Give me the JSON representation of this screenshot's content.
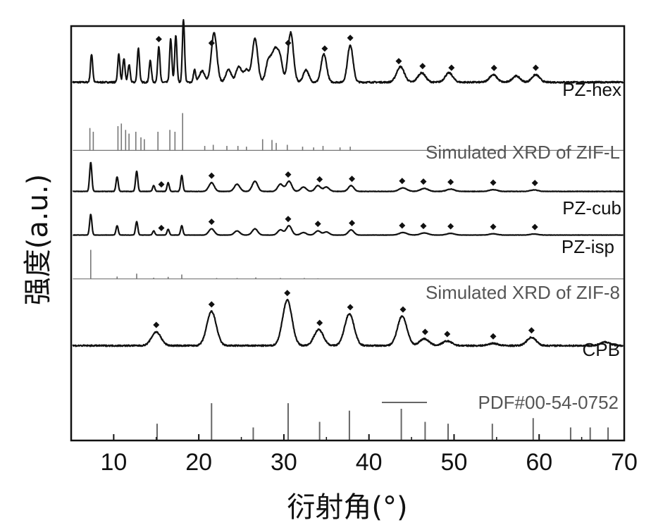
{
  "chart_data": {
    "type": "line",
    "subtype": "stacked XRD patterns",
    "xlabel": "衍射角(°)",
    "ylabel": "强度(a.u.)",
    "xlim": [
      5,
      70
    ],
    "xticks": [
      10,
      20,
      30,
      40,
      50,
      60,
      70
    ],
    "y_ticks_shown": false,
    "grid": false,
    "marker_symbol": "◆",
    "series": [
      {
        "name": "PZ-hex",
        "kind": "pattern",
        "offset": 0.86,
        "amplitude": 0.15,
        "baseline": 0.03,
        "noise": 0.012,
        "color": "#111111",
        "peaks": [
          [
            7.4,
            0.45
          ],
          [
            10.6,
            0.45
          ],
          [
            11.2,
            0.38
          ],
          [
            11.8,
            0.28
          ],
          [
            12.9,
            0.55
          ],
          [
            14.3,
            0.35
          ],
          [
            15.3,
            0.58
          ],
          [
            16.7,
            0.7
          ],
          [
            17.3,
            0.75
          ],
          [
            18.2,
            1.0
          ],
          [
            19.5,
            0.2
          ],
          [
            20.4,
            0.18
          ],
          [
            21.8,
            0.8
          ],
          [
            23.5,
            0.2
          ],
          [
            24.7,
            0.25
          ],
          [
            25.6,
            0.2
          ],
          [
            26.6,
            0.7
          ],
          [
            28.2,
            0.35
          ],
          [
            28.9,
            0.45
          ],
          [
            29.5,
            0.4
          ],
          [
            30.8,
            0.8
          ],
          [
            32.6,
            0.2
          ],
          [
            34.7,
            0.45
          ],
          [
            37.8,
            0.6
          ],
          [
            43.7,
            0.25
          ],
          [
            46.2,
            0.15
          ],
          [
            49.4,
            0.15
          ],
          [
            54.6,
            0.12
          ],
          [
            57.3,
            0.1
          ],
          [
            59.6,
            0.12
          ]
        ],
        "markers": [
          15.3,
          21.5,
          30.5,
          34.8,
          37.8,
          43.5,
          46.3,
          49.7,
          54.7,
          59.6
        ]
      },
      {
        "name": "Simulated XRD of ZIF-L",
        "kind": "sticks",
        "offset": 0.7,
        "amplitude": 0.09,
        "baseline": 0,
        "noise": 0,
        "color": "#777777",
        "peaks": [
          [
            7.2,
            0.6
          ],
          [
            7.6,
            0.5
          ],
          [
            10.5,
            0.65
          ],
          [
            10.9,
            0.72
          ],
          [
            11.4,
            0.55
          ],
          [
            11.8,
            0.45
          ],
          [
            12.6,
            0.5
          ],
          [
            13.2,
            0.35
          ],
          [
            13.6,
            0.3
          ],
          [
            15.2,
            0.5
          ],
          [
            16.6,
            0.55
          ],
          [
            17.2,
            0.5
          ],
          [
            18.1,
            1.0
          ],
          [
            20.7,
            0.12
          ],
          [
            21.7,
            0.15
          ],
          [
            23.3,
            0.12
          ],
          [
            24.6,
            0.12
          ],
          [
            25.6,
            0.1
          ],
          [
            27.5,
            0.3
          ],
          [
            28.6,
            0.28
          ],
          [
            29.1,
            0.2
          ],
          [
            30.4,
            0.15
          ],
          [
            32.2,
            0.1
          ],
          [
            33.5,
            0.08
          ],
          [
            34.6,
            0.12
          ],
          [
            36.6,
            0.08
          ],
          [
            37.8,
            0.1
          ]
        ],
        "markers": []
      },
      {
        "name": "PZ-cub",
        "kind": "pattern",
        "offset": 0.6,
        "amplitude": 0.07,
        "baseline": 0.015,
        "noise": 0.007,
        "color": "#111111",
        "peaks": [
          [
            7.3,
            1.0
          ],
          [
            10.4,
            0.5
          ],
          [
            12.7,
            0.7
          ],
          [
            14.7,
            0.2
          ],
          [
            16.4,
            0.3
          ],
          [
            18.0,
            0.55
          ],
          [
            21.5,
            0.3
          ],
          [
            24.5,
            0.25
          ],
          [
            26.6,
            0.35
          ],
          [
            29.6,
            0.25
          ],
          [
            30.6,
            0.35
          ],
          [
            32.3,
            0.15
          ],
          [
            34.0,
            0.2
          ],
          [
            35.0,
            0.15
          ],
          [
            37.9,
            0.2
          ],
          [
            44.0,
            0.12
          ],
          [
            46.5,
            0.1
          ],
          [
            49.6,
            0.08
          ],
          [
            54.6,
            0.06
          ],
          [
            59.4,
            0.05
          ]
        ],
        "markers": [
          15.6,
          21.5,
          30.5,
          34.2,
          38.0,
          43.9,
          46.4,
          49.6,
          54.6,
          59.5
        ]
      },
      {
        "name": "PZ-isp",
        "kind": "pattern",
        "offset": 0.495,
        "amplitude": 0.05,
        "baseline": 0.015,
        "noise": 0.006,
        "color": "#111111",
        "peaks": [
          [
            7.3,
            1.0
          ],
          [
            10.4,
            0.45
          ],
          [
            12.7,
            0.65
          ],
          [
            14.7,
            0.2
          ],
          [
            16.4,
            0.28
          ],
          [
            18.0,
            0.45
          ],
          [
            21.5,
            0.3
          ],
          [
            24.5,
            0.2
          ],
          [
            26.6,
            0.3
          ],
          [
            29.6,
            0.25
          ],
          [
            30.6,
            0.45
          ],
          [
            32.3,
            0.12
          ],
          [
            34.0,
            0.2
          ],
          [
            35.0,
            0.15
          ],
          [
            37.9,
            0.25
          ],
          [
            44.0,
            0.12
          ],
          [
            46.5,
            0.1
          ],
          [
            49.6,
            0.08
          ],
          [
            54.6,
            0.06
          ],
          [
            59.4,
            0.05
          ]
        ],
        "markers": [
          15.6,
          21.5,
          30.5,
          34.0,
          38.0,
          43.9,
          46.4,
          49.6,
          54.6,
          59.5
        ]
      },
      {
        "name": "Simulated XRD of ZIF-8",
        "kind": "sticks",
        "offset": 0.39,
        "amplitude": 0.07,
        "baseline": 0,
        "noise": 0,
        "color": "#777777",
        "peaks": [
          [
            7.3,
            1.0
          ],
          [
            10.4,
            0.08
          ],
          [
            12.7,
            0.18
          ],
          [
            14.7,
            0.04
          ],
          [
            16.4,
            0.07
          ],
          [
            18.0,
            0.15
          ],
          [
            22.1,
            0.03
          ],
          [
            24.5,
            0.03
          ],
          [
            26.7,
            0.05
          ],
          [
            29.6,
            0.03
          ],
          [
            32.4,
            0.03
          ],
          [
            34.0,
            0.02
          ]
        ],
        "markers": []
      },
      {
        "name": "CPB",
        "kind": "pattern",
        "offset": 0.225,
        "amplitude": 0.11,
        "baseline": 0.035,
        "noise": 0.015,
        "color": "#111111",
        "peaks": [
          [
            15.0,
            0.3
          ],
          [
            21.5,
            0.75
          ],
          [
            30.4,
            1.0
          ],
          [
            34.1,
            0.35
          ],
          [
            37.7,
            0.7
          ],
          [
            43.9,
            0.65
          ],
          [
            46.5,
            0.15
          ],
          [
            49.2,
            0.1
          ],
          [
            54.6,
            0.05
          ],
          [
            59.1,
            0.18
          ],
          [
            67.8,
            0.08
          ]
        ],
        "markers": [
          15.0,
          21.5,
          30.4,
          34.2,
          37.8,
          44.0,
          46.6,
          49.2,
          54.6,
          59.1
        ]
      },
      {
        "name": "PDF#00-54-0752",
        "kind": "reference",
        "offset": 0.0,
        "amplitude": 0.09,
        "baseline": 0,
        "noise": 0,
        "color": "#666666",
        "peaks": [
          [
            15.1,
            0.45
          ],
          [
            21.5,
            1.0
          ],
          [
            26.4,
            0.35
          ],
          [
            30.5,
            1.0
          ],
          [
            34.2,
            0.5
          ],
          [
            37.7,
            0.8
          ],
          [
            43.8,
            0.85
          ],
          [
            46.6,
            0.5
          ],
          [
            49.3,
            0.45
          ],
          [
            54.5,
            0.45
          ],
          [
            59.3,
            0.6
          ],
          [
            63.7,
            0.35
          ],
          [
            66.0,
            0.35
          ],
          [
            68.1,
            0.35
          ]
        ],
        "markers": []
      }
    ]
  }
}
